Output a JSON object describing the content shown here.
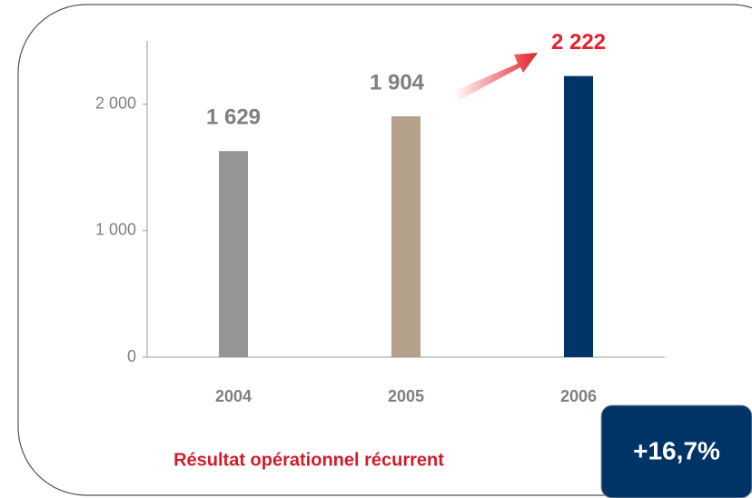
{
  "chart_data": {
    "type": "bar",
    "title": "Résultat opérationnel récurrent",
    "annotation": "+16,7%",
    "categories": [
      "2004",
      "2005",
      "2006"
    ],
    "series": [
      {
        "values": [
          1629,
          1904,
          2222
        ],
        "value_labels": [
          "1 629",
          "1 904",
          "2 222"
        ],
        "colors": [
          "#959595",
          "#b3a18c",
          "#003366"
        ]
      }
    ],
    "label_colors": [
      "#7f7f7f",
      "#7f7f7f",
      "#e3202b"
    ],
    "ylim": [
      0,
      2500
    ],
    "yticks": [
      0,
      {
        "value": 1000,
        "label": "1 000"
      },
      {
        "value": 2000,
        "label": "2 000"
      }
    ]
  }
}
